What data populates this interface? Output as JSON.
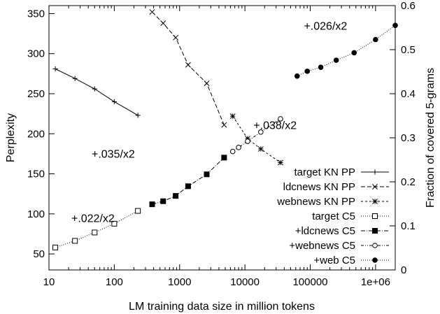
{
  "chart_data": {
    "type": "line",
    "xlabel": "LM training data size in million tokens",
    "ylabel_left": "Perplexity",
    "ylabel_right": "Fraction of covered 5-grams",
    "x_scale": "log",
    "xlim": [
      10,
      2000000
    ],
    "ylim_left": [
      30,
      360
    ],
    "ylim_right": [
      0,
      0.6
    ],
    "x_ticks": [
      10,
      100,
      1000,
      10000,
      100000,
      1000000
    ],
    "x_tick_labels": [
      "10",
      "100",
      "1000",
      "10000",
      "100000",
      "1e+06"
    ],
    "y_left_ticks": [
      50,
      100,
      150,
      200,
      250,
      300,
      350
    ],
    "y_left_tick_labels": [
      "50",
      "100",
      "150",
      "200",
      "250",
      "300",
      "350"
    ],
    "y_right_ticks": [
      0,
      0.1,
      0.2,
      0.3,
      0.4,
      0.5,
      0.6
    ],
    "y_right_tick_labels": [
      "0",
      "0.1",
      "0.2",
      "0.3",
      "0.4",
      "0.5",
      "0.6"
    ],
    "grid": false,
    "legend_position": "bottom-right",
    "series": [
      {
        "name": "target KN PP",
        "axis": "left",
        "marker": "plus",
        "dash": "",
        "x": [
          12.5,
          25,
          50,
          100,
          230
        ],
        "y": [
          281,
          269,
          256,
          240,
          223
        ]
      },
      {
        "name": "ldcnews KN PP",
        "axis": "left",
        "marker": "x",
        "dash": "6,3",
        "x": [
          380,
          560,
          870,
          1350,
          2600,
          4800
        ],
        "y": [
          352,
          338,
          320,
          286,
          263,
          211
        ]
      },
      {
        "name": "webnews KN PP",
        "axis": "left",
        "marker": "star",
        "dash": "3,3",
        "x": [
          6500,
          11000,
          17500,
          35000
        ],
        "y": [
          222,
          194,
          181,
          164
        ]
      },
      {
        "name": "target C5",
        "axis": "right",
        "marker": "square-open",
        "dash": "1,2",
        "x": [
          12.5,
          25,
          50,
          100,
          230
        ],
        "y": [
          0.051,
          0.066,
          0.085,
          0.105,
          0.134
        ]
      },
      {
        "name": "+ldcnews C5",
        "axis": "right",
        "marker": "square-filled",
        "dash": "6,2,1,2",
        "x": [
          380,
          560,
          870,
          1350,
          2600,
          4800
        ],
        "y": [
          0.149,
          0.156,
          0.168,
          0.19,
          0.217,
          0.255
        ]
      },
      {
        "name": "+webnews C5",
        "axis": "right",
        "marker": "circle-open",
        "dash": "4,2,1,2,1,2",
        "x": [
          6500,
          8000,
          11000,
          17500,
          35000
        ],
        "y": [
          0.269,
          0.278,
          0.292,
          0.313,
          0.343
        ]
      },
      {
        "name": "+web C5",
        "axis": "right",
        "marker": "circle-filled",
        "dash": "1,2",
        "x": [
          63000,
          90000,
          145000,
          250000,
          470000,
          1000000,
          2000000
        ],
        "y": [
          0.44,
          0.451,
          0.46,
          0.476,
          0.493,
          0.523,
          0.555
        ]
      }
    ],
    "annotations": [
      {
        "text": "+.026/x2",
        "x": 80000,
        "y": 330,
        "axis": "left"
      },
      {
        "text": "+.038/x2",
        "x": 13500,
        "y": 206,
        "axis": "left"
      },
      {
        "text": "+.035/x2",
        "x": 45,
        "y": 170,
        "axis": "left"
      },
      {
        "text": "+.022/x2",
        "x": 22,
        "y": 90,
        "axis": "left"
      }
    ]
  }
}
